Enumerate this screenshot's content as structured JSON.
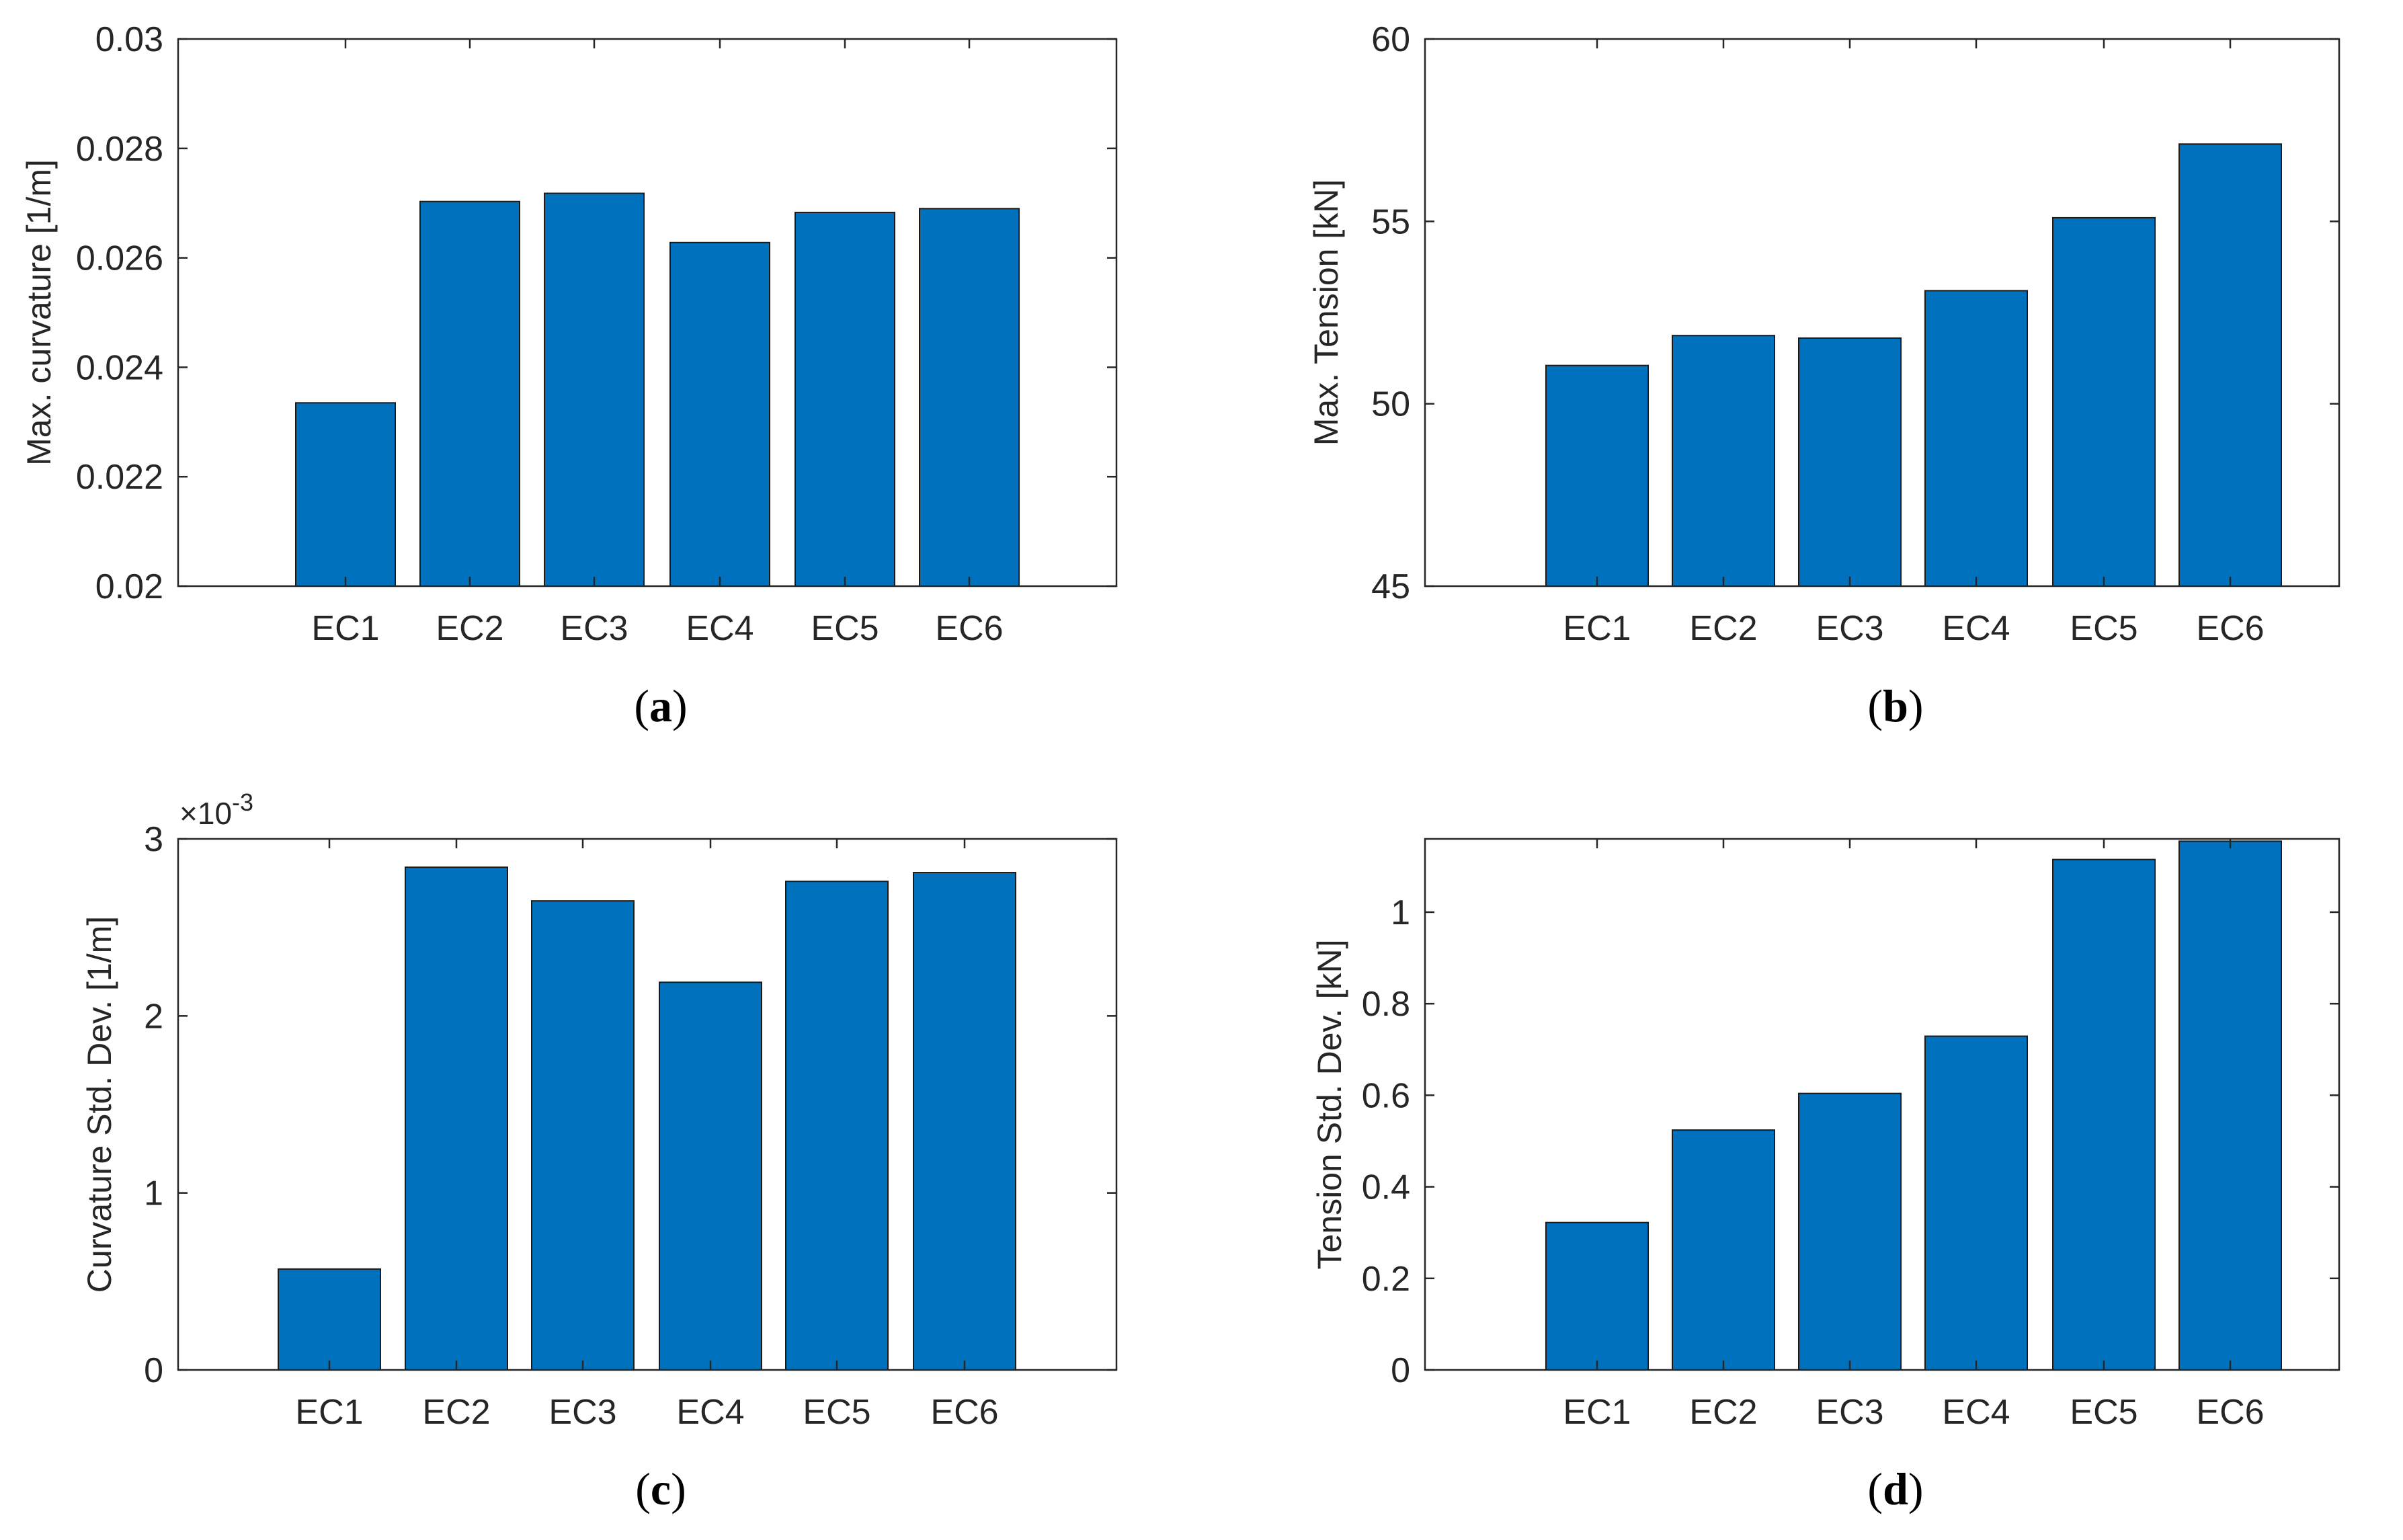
{
  "colors": {
    "bar_fill": "#0072BD",
    "bar_stroke": "#1a1a1a",
    "axis": "#262626"
  },
  "chart_data": [
    {
      "type": "bar",
      "caption": "a",
      "categories": [
        "EC1",
        "EC2",
        "EC3",
        "EC4",
        "EC5",
        "EC6"
      ],
      "values": [
        0.02335,
        0.02703,
        0.02718,
        0.02628,
        0.02683,
        0.0269
      ],
      "ylabel": "Max. curvature [1/m]",
      "xlabel": "",
      "ylim": [
        0.02,
        0.03
      ],
      "yticks": [
        0.02,
        0.022,
        0.024,
        0.026,
        0.028,
        0.03
      ],
      "ytick_labels": [
        "0.02",
        "0.022",
        "0.024",
        "0.026",
        "0.028",
        "0.03"
      ],
      "exponent_label": "",
      "grid": false
    },
    {
      "type": "bar",
      "caption": "b",
      "categories": [
        "EC1",
        "EC2",
        "EC3",
        "EC4",
        "EC5",
        "EC6"
      ],
      "values": [
        51.05,
        51.87,
        51.8,
        53.1,
        55.1,
        57.12
      ],
      "ylabel": "Max. Tension [kN]",
      "xlabel": "",
      "ylim": [
        45,
        60
      ],
      "yticks": [
        45,
        50,
        55,
        60
      ],
      "ytick_labels": [
        "45",
        "50",
        "55",
        "60"
      ],
      "exponent_label": "",
      "grid": false
    },
    {
      "type": "bar",
      "caption": "c",
      "categories": [
        "EC1",
        "EC2",
        "EC3",
        "EC4",
        "EC5",
        "EC6"
      ],
      "values": [
        0.57,
        2.84,
        2.65,
        2.19,
        2.76,
        2.81
      ],
      "ylabel": "Curvature Std. Dev. [1/m]",
      "xlabel": "",
      "ylim": [
        0,
        3
      ],
      "yticks": [
        0,
        1,
        2,
        3
      ],
      "ytick_labels": [
        "0",
        "1",
        "2",
        "3"
      ],
      "exponent_label": "×10",
      "exponent_power": "-3",
      "grid": false
    },
    {
      "type": "bar",
      "caption": "d",
      "categories": [
        "EC1",
        "EC2",
        "EC3",
        "EC4",
        "EC5",
        "EC6"
      ],
      "values": [
        0.322,
        0.524,
        0.604,
        0.729,
        1.115,
        1.155
      ],
      "ylabel": "Tension Std. Dev. [kN]",
      "xlabel": "",
      "ylim": [
        0,
        1.16
      ],
      "yticks": [
        0,
        0.2,
        0.4,
        0.6,
        0.8,
        1
      ],
      "ytick_labels": [
        "0",
        "0.2",
        "0.4",
        "0.6",
        "0.8",
        "1"
      ],
      "exponent_label": "",
      "grid": false
    }
  ]
}
